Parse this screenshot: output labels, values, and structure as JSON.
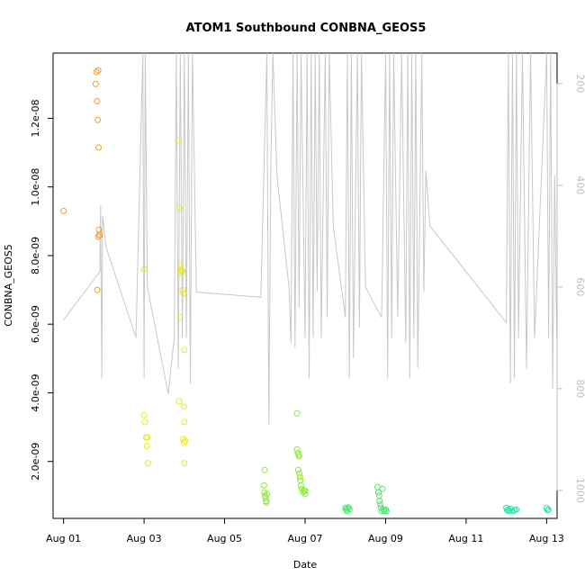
{
  "chart_data": {
    "type": "scatter",
    "title": "ATOM1 Southbound CONBNA_GEOS5",
    "xlabel": "Date",
    "ylabel": "CONBNA_GEOS5",
    "x_ticks": [
      {
        "label": "Aug 01",
        "value": 0
      },
      {
        "label": "Aug 03",
        "value": 2
      },
      {
        "label": "Aug 05",
        "value": 4
      },
      {
        "label": "Aug 07",
        "value": 6
      },
      {
        "label": "Aug 09",
        "value": 8
      },
      {
        "label": "Aug 11",
        "value": 10
      },
      {
        "label": "Aug 13",
        "value": 12
      }
    ],
    "xlim": [
      -0.26,
      12.26
    ],
    "ylim": [
      3.4e-10,
      1.39e-08
    ],
    "y_ticks": [
      {
        "label": "2.0e-09",
        "value": 2e-09
      },
      {
        "label": "4.0e-09",
        "value": 4e-09
      },
      {
        "label": "6.0e-09",
        "value": 6e-09
      },
      {
        "label": "8.0e-09",
        "value": 8e-09
      },
      {
        "label": "1.0e-08",
        "value": 1e-08
      },
      {
        "label": "1.2e-08",
        "value": 1.2e-08
      }
    ],
    "right_axis": {
      "label": "",
      "reversed": true,
      "ylim": [
        140,
        1055
      ],
      "ticks": [
        200,
        400,
        600,
        800,
        1000
      ],
      "color": "#bdbdbd"
    },
    "profile_color": "#c8c8c8",
    "profile": [
      [
        0.0,
        665
      ],
      [
        0.9,
        570
      ],
      [
        0.92,
        440
      ],
      [
        0.95,
        780
      ],
      [
        0.97,
        460
      ],
      [
        1.0,
        480
      ],
      [
        1.05,
        520
      ],
      [
        1.8,
        700
      ],
      [
        1.97,
        140
      ],
      [
        2.0,
        780
      ],
      [
        2.03,
        140
      ],
      [
        2.08,
        600
      ],
      [
        2.6,
        810
      ],
      [
        2.75,
        700
      ],
      [
        2.8,
        140
      ],
      [
        2.85,
        760
      ],
      [
        2.9,
        140
      ],
      [
        2.95,
        700
      ],
      [
        3.0,
        140
      ],
      [
        3.05,
        700
      ],
      [
        3.1,
        140
      ],
      [
        3.15,
        790
      ],
      [
        3.2,
        140
      ],
      [
        3.3,
        610
      ],
      [
        4.9,
        620
      ],
      [
        5.05,
        140
      ],
      [
        5.1,
        870
      ],
      [
        5.15,
        350
      ],
      [
        5.2,
        140
      ],
      [
        5.3,
        380
      ],
      [
        5.6,
        600
      ],
      [
        5.65,
        710
      ],
      [
        5.7,
        140
      ],
      [
        5.75,
        720
      ],
      [
        5.8,
        140
      ],
      [
        5.85,
        640
      ],
      [
        5.9,
        140
      ],
      [
        6.0,
        700
      ],
      [
        6.05,
        140
      ],
      [
        6.1,
        780
      ],
      [
        6.15,
        140
      ],
      [
        6.2,
        700
      ],
      [
        6.25,
        140
      ],
      [
        6.3,
        610
      ],
      [
        6.35,
        140
      ],
      [
        6.4,
        700
      ],
      [
        6.5,
        140
      ],
      [
        6.55,
        660
      ],
      [
        6.6,
        140
      ],
      [
        6.7,
        480
      ],
      [
        7.0,
        660
      ],
      [
        7.05,
        140
      ],
      [
        7.1,
        780
      ],
      [
        7.15,
        140
      ],
      [
        7.2,
        740
      ],
      [
        7.3,
        140
      ],
      [
        7.35,
        680
      ],
      [
        7.4,
        140
      ],
      [
        7.5,
        600
      ],
      [
        7.9,
        660
      ],
      [
        8.0,
        140
      ],
      [
        8.05,
        780
      ],
      [
        8.1,
        140
      ],
      [
        8.15,
        700
      ],
      [
        8.2,
        140
      ],
      [
        8.3,
        660
      ],
      [
        8.4,
        140
      ],
      [
        8.5,
        710
      ],
      [
        8.55,
        140
      ],
      [
        8.6,
        780
      ],
      [
        8.65,
        140
      ],
      [
        8.7,
        700
      ],
      [
        8.75,
        140
      ],
      [
        8.8,
        760
      ],
      [
        8.9,
        140
      ],
      [
        8.95,
        610
      ],
      [
        9.0,
        370
      ],
      [
        9.1,
        480
      ],
      [
        11.0,
        670
      ],
      [
        11.05,
        140
      ],
      [
        11.1,
        790
      ],
      [
        11.15,
        140
      ],
      [
        11.2,
        780
      ],
      [
        11.25,
        140
      ],
      [
        11.3,
        700
      ],
      [
        11.4,
        140
      ],
      [
        11.5,
        760
      ],
      [
        11.6,
        140
      ],
      [
        11.7,
        700
      ],
      [
        12.0,
        140
      ],
      [
        12.05,
        700
      ],
      [
        12.1,
        140
      ],
      [
        12.15,
        800
      ],
      [
        12.2,
        380
      ],
      [
        12.25,
        700
      ]
    ],
    "groups": [
      {
        "color": "#f39c2a",
        "points": [
          [
            0.0,
            9.3e-09
          ],
          [
            0.82,
            1.335e-08
          ],
          [
            0.86,
            1.34e-08
          ],
          [
            0.8,
            1.3e-08
          ],
          [
            0.83,
            1.25e-08
          ],
          [
            0.85,
            1.195e-08
          ],
          [
            0.87,
            1.115e-08
          ],
          [
            0.88,
            8.75e-09
          ],
          [
            0.86,
            8.55e-09
          ],
          [
            0.89,
            8.6e-09
          ],
          [
            0.9,
            8.6e-09
          ],
          [
            0.84,
            7e-09
          ]
        ]
      },
      {
        "color": "#e8e820",
        "points": [
          [
            2.0,
            7.6e-09
          ],
          [
            2.0,
            3.35e-09
          ],
          [
            2.02,
            3.15e-09
          ],
          [
            2.05,
            2.7e-09
          ],
          [
            2.08,
            2.7e-09
          ],
          [
            2.07,
            2.45e-09
          ],
          [
            2.1,
            1.95e-09
          ],
          [
            2.85,
            1.135e-08
          ],
          [
            2.88,
            9.4e-09
          ],
          [
            2.9,
            7.7e-09
          ],
          [
            2.92,
            7.6e-09
          ],
          [
            2.95,
            7.55e-09
          ],
          [
            2.93,
            7.5e-09
          ],
          [
            2.96,
            7e-09
          ],
          [
            2.98,
            6.9e-09
          ],
          [
            2.9,
            6.2e-09
          ],
          [
            3.0,
            5.25e-09
          ],
          [
            2.87,
            3.75e-09
          ],
          [
            2.99,
            3.6e-09
          ],
          [
            3.0,
            3.15e-09
          ],
          [
            2.97,
            2.65e-09
          ],
          [
            3.02,
            2.6e-09
          ],
          [
            2.99,
            2.55e-09
          ],
          [
            3.0,
            1.95e-09
          ]
        ]
      },
      {
        "color": "#8ee83a",
        "points": [
          [
            5.0,
            1.75e-09
          ],
          [
            4.98,
            1.3e-09
          ],
          [
            4.99,
            1.1e-09
          ],
          [
            5.0,
            1e-09
          ],
          [
            5.02,
            9.5e-10
          ],
          [
            5.03,
            8.5e-10
          ],
          [
            5.04,
            8e-10
          ],
          [
            5.05,
            1.05e-09
          ],
          [
            5.8,
            3.4e-09
          ],
          [
            5.8,
            2.35e-09
          ],
          [
            5.82,
            2.25e-09
          ],
          [
            5.84,
            2.2e-09
          ],
          [
            5.85,
            2.15e-09
          ],
          [
            5.83,
            1.75e-09
          ],
          [
            5.86,
            1.65e-09
          ],
          [
            5.87,
            1.55e-09
          ],
          [
            5.88,
            1.45e-09
          ],
          [
            5.9,
            1.3e-09
          ],
          [
            5.92,
            1.2e-09
          ],
          [
            5.95,
            1.1e-09
          ],
          [
            5.97,
            1.15e-09
          ],
          [
            6.0,
            1.05e-09
          ],
          [
            6.0,
            1.15e-09
          ]
        ]
      },
      {
        "color": "#4fe86a",
        "points": [
          [
            7.0,
            6.5e-10
          ],
          [
            7.02,
            6e-10
          ],
          [
            7.04,
            5.5e-10
          ],
          [
            7.05,
            6.3e-10
          ],
          [
            7.08,
            6.6e-10
          ],
          [
            7.1,
            6e-10
          ],
          [
            7.8,
            1.25e-09
          ],
          [
            7.82,
            1.1e-09
          ],
          [
            7.84,
            1e-09
          ],
          [
            7.85,
            8.5e-10
          ],
          [
            7.87,
            7.5e-10
          ],
          [
            7.88,
            6.5e-10
          ],
          [
            7.9,
            5.5e-10
          ],
          [
            7.92,
            1.2e-09
          ],
          [
            7.95,
            6e-10
          ],
          [
            7.97,
            5.5e-10
          ],
          [
            8.0,
            6e-10
          ],
          [
            8.02,
            5.5e-10
          ]
        ]
      },
      {
        "color": "#20e8a8",
        "points": [
          [
            11.0,
            6.5e-10
          ],
          [
            11.02,
            5.8e-10
          ],
          [
            11.05,
            6e-10
          ],
          [
            11.08,
            5.5e-10
          ],
          [
            11.1,
            6.2e-10
          ],
          [
            11.15,
            5.5e-10
          ],
          [
            11.2,
            5.8e-10
          ],
          [
            11.25,
            6e-10
          ],
          [
            12.0,
            6.5e-10
          ],
          [
            12.02,
            5.8e-10
          ],
          [
            12.04,
            6e-10
          ]
        ]
      }
    ]
  }
}
